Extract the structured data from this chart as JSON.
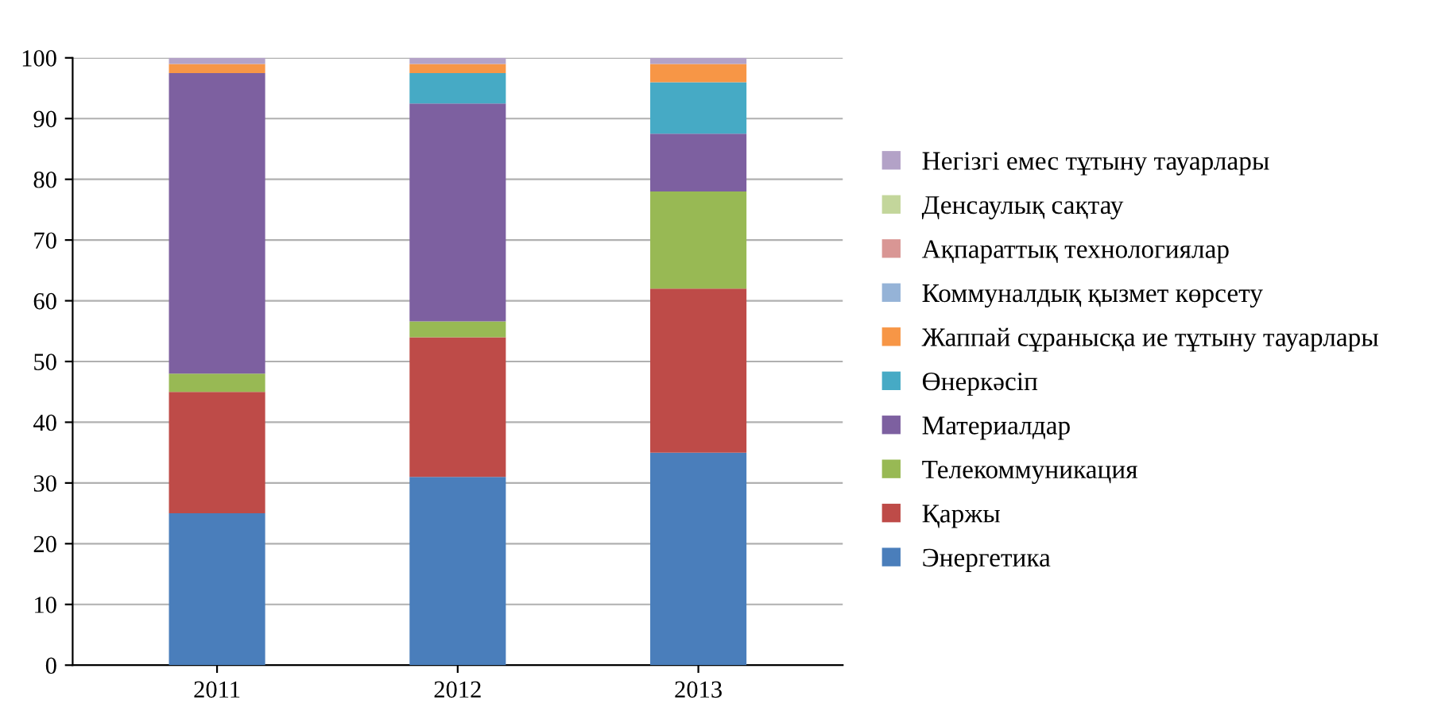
{
  "chart_data": {
    "type": "bar",
    "stacked": true,
    "categories": [
      "2011",
      "2012",
      "2013"
    ],
    "ylim": [
      0,
      100
    ],
    "yticks": [
      0,
      10,
      20,
      30,
      40,
      50,
      60,
      70,
      80,
      90,
      100
    ],
    "grid": "y",
    "legend": "right",
    "series": [
      {
        "name": "Энергетика",
        "color": "#4a7ebb",
        "values": [
          25,
          31,
          35
        ]
      },
      {
        "name": "Қаржы",
        "color": "#be4b48",
        "values": [
          20,
          23,
          27
        ]
      },
      {
        "name": "Телекоммуникация",
        "color": "#98b954",
        "values": [
          3,
          2.6,
          16
        ]
      },
      {
        "name": "Материалдар",
        "color": "#7d60a0",
        "values": [
          49.5,
          35.9,
          9.5
        ]
      },
      {
        "name": "Өнеркәсіп",
        "color": "#46aac5",
        "values": [
          0,
          5,
          8.5
        ]
      },
      {
        "name": "Жаппай сұранысқа ие тұтыну тауарлары",
        "color": "#f79646",
        "values": [
          1.5,
          1.5,
          3
        ]
      },
      {
        "name": "Коммуналдық қызмет көрсету",
        "color": "#95b3d7",
        "values": [
          0,
          0,
          0
        ]
      },
      {
        "name": "Ақпараттық технологиялар",
        "color": "#d99694",
        "values": [
          0,
          0,
          0
        ]
      },
      {
        "name": "Денсаулық сақтау",
        "color": "#c3d69b",
        "values": [
          0,
          0,
          0
        ]
      },
      {
        "name": "Негізгі емес тұтыну тауарлары",
        "color": "#b3a2c7",
        "values": [
          1,
          1,
          1
        ]
      }
    ]
  }
}
